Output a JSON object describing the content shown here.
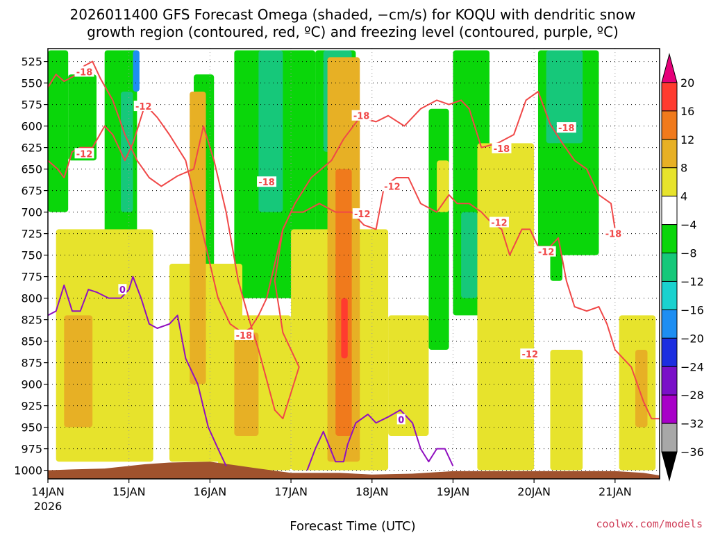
{
  "chart_data": {
    "type": "heatmap",
    "title_line1": "2026011400 GFS Forecast Omega (shaded, −cm/s) for KOQU with dendritic snow",
    "title_line2": "growth region (contoured, red, ºC) and freezing level (contoured, purple, ºC)",
    "xlabel": "Forecast Time (UTC)",
    "ylabel": "",
    "x_ticks": [
      "14JAN",
      "15JAN",
      "16JAN",
      "17JAN",
      "18JAN",
      "19JAN",
      "20JAN",
      "21JAN"
    ],
    "x_year": "2026",
    "xlim": [
      0,
      7.55
    ],
    "y_ticks": [
      525,
      550,
      575,
      600,
      625,
      650,
      675,
      700,
      725,
      750,
      775,
      800,
      825,
      850,
      875,
      900,
      925,
      950,
      975,
      1000
    ],
    "ylim": [
      1010,
      510
    ],
    "colorbar": {
      "levels": [
        20,
        16,
        12,
        8,
        4,
        -4,
        -8,
        -12,
        -16,
        -20,
        -24,
        -28,
        -32,
        -36
      ],
      "colors": [
        "#e6007a",
        "#ff3b2f",
        "#f07a1c",
        "#e7b025",
        "#e7e32c",
        "#ffffff",
        "#0ad60a",
        "#16c87a",
        "#1ad2cf",
        "#1e8ef2",
        "#1c2ee0",
        "#7a10c8",
        "#a800c8",
        "#a8a8a8",
        "#000000"
      ]
    },
    "shaded_regions": [
      {
        "value": -8,
        "t0": 0.0,
        "t1": 0.25,
        "p0": 512,
        "p1": 700
      },
      {
        "value": -8,
        "t0": 0.25,
        "t1": 0.6,
        "p0": 540,
        "p1": 640
      },
      {
        "value": -8,
        "t0": 0.7,
        "t1": 1.1,
        "p0": 512,
        "p1": 780
      },
      {
        "value": -12,
        "t0": 0.9,
        "t1": 1.05,
        "p0": 560,
        "p1": 700
      },
      {
        "value": -20,
        "t0": 1.05,
        "t1": 1.13,
        "p0": 512,
        "p1": 560
      },
      {
        "value": -8,
        "t0": 1.8,
        "t1": 2.05,
        "p0": 540,
        "p1": 850
      },
      {
        "value": -8,
        "t0": 2.3,
        "t1": 3.3,
        "p0": 512,
        "p1": 800
      },
      {
        "value": -12,
        "t0": 2.6,
        "t1": 2.9,
        "p0": 512,
        "p1": 700
      },
      {
        "value": -8,
        "t0": 3.3,
        "t1": 3.8,
        "p0": 512,
        "p1": 760
      },
      {
        "value": -12,
        "t0": 3.4,
        "t1": 3.75,
        "p0": 512,
        "p1": 630
      },
      {
        "value": -16,
        "t0": 3.5,
        "t1": 3.6,
        "p0": 580,
        "p1": 630
      },
      {
        "value": -8,
        "t0": 4.7,
        "t1": 4.95,
        "p0": 580,
        "p1": 860
      },
      {
        "value": -8,
        "t0": 5.0,
        "t1": 5.45,
        "p0": 512,
        "p1": 820
      },
      {
        "value": -12,
        "t0": 5.1,
        "t1": 5.3,
        "p0": 700,
        "p1": 800
      },
      {
        "value": -8,
        "t0": 6.05,
        "t1": 6.8,
        "p0": 512,
        "p1": 750
      },
      {
        "value": -12,
        "t0": 6.15,
        "t1": 6.6,
        "p0": 512,
        "p1": 620
      },
      {
        "value": -8,
        "t0": 6.2,
        "t1": 6.35,
        "p0": 620,
        "p1": 780
      },
      {
        "value": 4,
        "t0": 0.1,
        "t1": 1.3,
        "p0": 720,
        "p1": 990
      },
      {
        "value": 8,
        "t0": 0.2,
        "t1": 0.55,
        "p0": 820,
        "p1": 950
      },
      {
        "value": 4,
        "t0": 1.5,
        "t1": 2.4,
        "p0": 760,
        "p1": 990
      },
      {
        "value": 8,
        "t0": 1.75,
        "t1": 1.95,
        "p0": 560,
        "p1": 900
      },
      {
        "value": 4,
        "t0": 2.1,
        "t1": 3.0,
        "p0": 820,
        "p1": 1000
      },
      {
        "value": 8,
        "t0": 2.3,
        "t1": 2.6,
        "p0": 840,
        "p1": 960
      },
      {
        "value": 4,
        "t0": 3.0,
        "t1": 4.2,
        "p0": 720,
        "p1": 1000
      },
      {
        "value": 8,
        "t0": 3.45,
        "t1": 3.85,
        "p0": 520,
        "p1": 990
      },
      {
        "value": 12,
        "t0": 3.55,
        "t1": 3.75,
        "p0": 650,
        "p1": 960
      },
      {
        "value": 16,
        "t0": 3.62,
        "t1": 3.7,
        "p0": 800,
        "p1": 870
      },
      {
        "value": 4,
        "t0": 4.2,
        "t1": 4.7,
        "p0": 820,
        "p1": 960
      },
      {
        "value": 4,
        "t0": 4.8,
        "t1": 4.95,
        "p0": 640,
        "p1": 700
      },
      {
        "value": 4,
        "t0": 5.3,
        "t1": 6.0,
        "p0": 620,
        "p1": 1000
      },
      {
        "value": 4,
        "t0": 6.2,
        "t1": 6.6,
        "p0": 860,
        "p1": 1000
      },
      {
        "value": 4,
        "t0": 7.05,
        "t1": 7.5,
        "p0": 820,
        "p1": 1000
      },
      {
        "value": 8,
        "t0": 7.25,
        "t1": 7.4,
        "p0": 860,
        "p1": 950
      }
    ],
    "red_contours": [
      {
        "label": "-18",
        "points": [
          [
            0.0,
            555
          ],
          [
            0.1,
            540
          ],
          [
            0.2,
            548
          ],
          [
            0.32,
            542
          ],
          [
            0.45,
            530
          ],
          [
            0.55,
            525
          ],
          [
            0.65,
            545
          ],
          [
            0.8,
            570
          ],
          [
            0.95,
            610
          ],
          [
            1.1,
            640
          ],
          [
            1.25,
            660
          ],
          [
            1.4,
            670
          ],
          [
            1.6,
            658
          ],
          [
            1.8,
            650
          ],
          [
            1.92,
            600
          ],
          [
            2.05,
            640
          ],
          [
            2.2,
            700
          ],
          [
            2.35,
            780
          ],
          [
            2.5,
            830
          ],
          [
            2.6,
            860
          ],
          [
            2.7,
            895
          ],
          [
            2.8,
            930
          ],
          [
            2.9,
            940
          ],
          [
            3.0,
            910
          ],
          [
            3.1,
            880
          ],
          [
            2.9,
            840
          ],
          [
            2.8,
            780
          ],
          [
            2.9,
            720
          ],
          [
            3.05,
            690
          ],
          [
            3.25,
            660
          ],
          [
            3.5,
            640
          ],
          [
            3.65,
            615
          ],
          [
            3.85,
            590
          ],
          [
            4.05,
            595
          ],
          [
            4.2,
            588
          ],
          [
            4.4,
            600
          ],
          [
            4.6,
            580
          ],
          [
            4.8,
            570
          ],
          [
            4.95,
            575
          ],
          [
            5.1,
            570
          ],
          [
            5.2,
            580
          ],
          [
            5.35,
            625
          ],
          [
            5.55,
            620
          ],
          [
            5.75,
            610
          ],
          [
            5.9,
            570
          ],
          [
            6.05,
            560
          ],
          [
            6.2,
            598
          ],
          [
            6.35,
            620
          ],
          [
            6.5,
            640
          ],
          [
            6.65,
            650
          ],
          [
            6.8,
            680
          ],
          [
            6.95,
            690
          ],
          [
            7.0,
            720
          ]
        ]
      },
      {
        "label": "-12",
        "points": [
          [
            0.0,
            640
          ],
          [
            0.12,
            650
          ],
          [
            0.2,
            660
          ],
          [
            0.3,
            630
          ],
          [
            0.4,
            625
          ],
          [
            0.55,
            625
          ],
          [
            0.7,
            600
          ],
          [
            0.8,
            610
          ],
          [
            0.95,
            640
          ],
          [
            1.05,
            620
          ],
          [
            1.2,
            575
          ],
          [
            1.35,
            590
          ],
          [
            1.5,
            610
          ],
          [
            1.7,
            640
          ],
          [
            1.8,
            680
          ],
          [
            1.9,
            720
          ],
          [
            2.0,
            760
          ],
          [
            2.1,
            800
          ],
          [
            2.25,
            830
          ],
          [
            2.4,
            840
          ],
          [
            2.5,
            835
          ],
          [
            2.6,
            820
          ],
          [
            2.7,
            800
          ],
          [
            2.8,
            760
          ],
          [
            2.9,
            720
          ],
          [
            3.0,
            700
          ],
          [
            3.15,
            700
          ],
          [
            3.35,
            690
          ],
          [
            3.55,
            700
          ],
          [
            3.75,
            700
          ],
          [
            3.9,
            715
          ],
          [
            4.05,
            720
          ],
          [
            4.15,
            670
          ],
          [
            4.3,
            660
          ],
          [
            4.45,
            660
          ],
          [
            4.6,
            690
          ],
          [
            4.8,
            700
          ],
          [
            4.95,
            680
          ],
          [
            5.05,
            690
          ],
          [
            5.2,
            690
          ],
          [
            5.35,
            700
          ],
          [
            5.45,
            710
          ],
          [
            5.6,
            720
          ],
          [
            5.7,
            750
          ],
          [
            5.85,
            720
          ],
          [
            5.95,
            720
          ],
          [
            6.05,
            740
          ],
          [
            6.2,
            740
          ],
          [
            6.3,
            730
          ],
          [
            6.4,
            780
          ],
          [
            6.5,
            810
          ],
          [
            6.65,
            815
          ],
          [
            6.8,
            810
          ],
          [
            6.9,
            830
          ],
          [
            7.0,
            860
          ],
          [
            7.1,
            870
          ],
          [
            7.2,
            880
          ],
          [
            7.35,
            920
          ],
          [
            7.45,
            940
          ],
          [
            7.55,
            940
          ]
        ]
      }
    ],
    "red_labels": [
      {
        "text": "-18",
        "t": 0.45,
        "p": 537
      },
      {
        "text": "-12",
        "t": 1.18,
        "p": 577
      },
      {
        "text": "-12",
        "t": 0.45,
        "p": 632
      },
      {
        "text": "-18",
        "t": 2.7,
        "p": 665
      },
      {
        "text": "-18",
        "t": 2.42,
        "p": 843
      },
      {
        "text": "-18",
        "t": 3.87,
        "p": 588
      },
      {
        "text": "-12",
        "t": 4.25,
        "p": 670
      },
      {
        "text": "-12",
        "t": 3.88,
        "p": 702
      },
      {
        "text": "-18",
        "t": 5.6,
        "p": 626
      },
      {
        "text": "-12",
        "t": 5.57,
        "p": 712
      },
      {
        "text": "-18",
        "t": 6.4,
        "p": 602
      },
      {
        "text": "-12",
        "t": 6.15,
        "p": 746
      },
      {
        "text": "-12",
        "t": 5.95,
        "p": 865
      },
      {
        "text": "-18",
        "t": 6.98,
        "p": 725
      }
    ],
    "purple_contours": [
      {
        "label": "0",
        "points": [
          [
            0.0,
            820
          ],
          [
            0.1,
            815
          ],
          [
            0.2,
            785
          ],
          [
            0.3,
            815
          ],
          [
            0.4,
            815
          ],
          [
            0.5,
            790
          ],
          [
            0.6,
            793
          ],
          [
            0.75,
            800
          ],
          [
            0.9,
            800
          ],
          [
            1.0,
            790
          ],
          [
            1.05,
            775
          ],
          [
            1.15,
            800
          ],
          [
            1.25,
            830
          ],
          [
            1.35,
            835
          ],
          [
            1.5,
            830
          ],
          [
            1.6,
            820
          ],
          [
            1.7,
            870
          ],
          [
            1.85,
            900
          ],
          [
            1.98,
            950
          ],
          [
            2.1,
            975
          ],
          [
            2.2,
            995
          ]
        ]
      },
      {
        "label": "0",
        "points": [
          [
            3.2,
            1000
          ],
          [
            3.3,
            975
          ],
          [
            3.4,
            955
          ],
          [
            3.55,
            990
          ],
          [
            3.65,
            990
          ],
          [
            3.7,
            970
          ],
          [
            3.8,
            945
          ],
          [
            3.95,
            935
          ],
          [
            4.05,
            945
          ],
          [
            4.2,
            938
          ],
          [
            4.35,
            930
          ],
          [
            4.5,
            945
          ],
          [
            4.6,
            975
          ],
          [
            4.7,
            990
          ],
          [
            4.8,
            975
          ],
          [
            4.9,
            975
          ],
          [
            5.0,
            995
          ]
        ]
      }
    ],
    "purple_labels": [
      {
        "text": "0",
        "t": 0.92,
        "p": 790
      },
      {
        "text": "0",
        "t": 4.36,
        "p": 941
      }
    ],
    "terrain_top": [
      [
        0,
        1000
      ],
      [
        0.3,
        999
      ],
      [
        0.7,
        998
      ],
      [
        1.2,
        993
      ],
      [
        1.5,
        991
      ],
      [
        2.0,
        990
      ],
      [
        2.3,
        994
      ],
      [
        2.6,
        998
      ],
      [
        3.0,
        1003
      ],
      [
        3.6,
        1003
      ],
      [
        4.0,
        1005
      ],
      [
        4.5,
        1004
      ],
      [
        5.0,
        1001
      ],
      [
        5.5,
        1001
      ],
      [
        6.0,
        1001
      ],
      [
        6.5,
        1001
      ],
      [
        7.0,
        1001
      ],
      [
        7.35,
        1003
      ],
      [
        7.55,
        1006
      ]
    ]
  },
  "footer": {
    "credit": "coolwx.com/models"
  }
}
